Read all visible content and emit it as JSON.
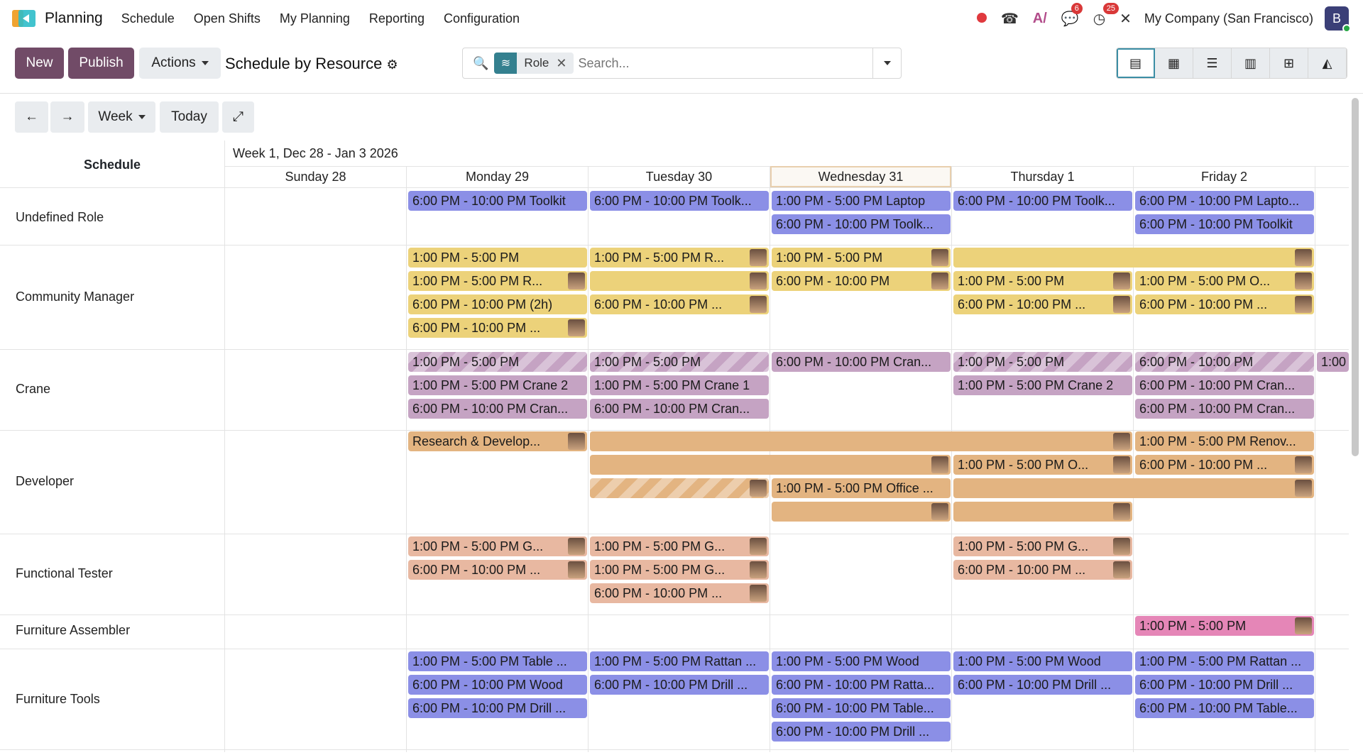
{
  "app": {
    "name": "Planning",
    "menu": [
      "Schedule",
      "Open Shifts",
      "My Planning",
      "Reporting",
      "Configuration"
    ],
    "company": "My Company (San Francisco)",
    "avatar_letter": "B",
    "badge_messages": "6",
    "badge_activities": "25"
  },
  "control": {
    "new": "New",
    "publish": "Publish",
    "actions": "Actions",
    "view_title": "Schedule by Resource",
    "facet": "Role",
    "search_placeholder": "Search..."
  },
  "nav": {
    "week": "Week",
    "today": "Today"
  },
  "schedule": {
    "header": "Schedule",
    "range": "Week 1, Dec 28 - Jan 3 2026",
    "days": [
      "Sunday 28",
      "Monday 29",
      "Tuesday 30",
      "Wednesday 31",
      "Thursday 1",
      "Friday 2"
    ],
    "rows": [
      "Undefined Role",
      "Community Manager",
      "Crane",
      "Developer",
      "Functional Tester",
      "Furniture Assembler",
      "Furniture Tools"
    ],
    "shifts": [
      "6:00 PM - 10:00 PM Toolkit",
      "6:00 PM - 10:00 PM Toolk...",
      "1:00 PM - 5:00 PM Laptop",
      "6:00 PM - 10:00 PM Toolk...",
      "6:00 PM - 10:00 PM Lapto...",
      "6:00 PM - 10:00 PM Toolk...",
      "6:00 PM - 10:00 PM Toolkit",
      "1:00 PM - 5:00 PM",
      "1:00 PM - 5:00 PM R...",
      "1:00 PM - 5:00 PM",
      "1:00 PM - 5:00 PM R...",
      "6:00 PM - 10:00 PM",
      "1:00 PM - 5:00 PM",
      "1:00 PM - 5:00 PM O...",
      "6:00 PM - 10:00 PM (2h)",
      "6:00 PM - 10:00 PM ...",
      "6:00 PM - 10:00 PM ...",
      "6:00 PM - 10:00 PM ...",
      "6:00 PM - 10:00 PM ...",
      "1:00 PM - 5:00 PM",
      "1:00 PM - 5:00 PM",
      "6:00 PM - 10:00 PM Cran...",
      "1:00 PM - 5:00 PM",
      "6:00 PM - 10:00 PM",
      "1:00",
      "1:00 PM - 5:00 PM Crane 2",
      "1:00 PM - 5:00 PM Crane 1",
      "1:00 PM - 5:00 PM Crane 2",
      "6:00 PM - 10:00 PM Cran...",
      "6:00 PM - 10:00 PM Cran...",
      "6:00 PM - 10:00 PM Cran...",
      "6:00 PM - 10:00 PM Cran...",
      "Research & Develop...",
      "1:00 PM - 5:00 PM Renov...",
      "1:00 PM - 5:00 PM O...",
      "6:00 PM - 10:00 PM ...",
      "1:00 PM - 5:00 PM Office ...",
      "1:00 PM - 5:00 PM G...",
      "1:00 PM - 5:00 PM G...",
      "1:00 PM - 5:00 PM G...",
      "6:00 PM - 10:00 PM ...",
      "1:00 PM - 5:00 PM G...",
      "6:00 PM - 10:00 PM ...",
      "6:00 PM - 10:00 PM ...",
      "1:00 PM - 5:00 PM",
      "1:00 PM - 5:00 PM Table ...",
      "1:00 PM - 5:00 PM Rattan ...",
      "1:00 PM - 5:00 PM Wood",
      "1:00 PM - 5:00 PM Wood",
      "1:00 PM - 5:00 PM Rattan ...",
      "6:00 PM - 10:00 PM Wood",
      "6:00 PM - 10:00 PM Drill ...",
      "6:00 PM - 10:00 PM Ratta...",
      "6:00 PM - 10:00 PM Drill ...",
      "6:00 PM - 10:00 PM Drill ...",
      "6:00 PM - 10:00 PM Drill ...",
      "6:00 PM - 10:00 PM Table...",
      "6:00 PM - 10:00 PM Table...",
      "6:00 PM - 10:00 PM Drill ..."
    ]
  }
}
